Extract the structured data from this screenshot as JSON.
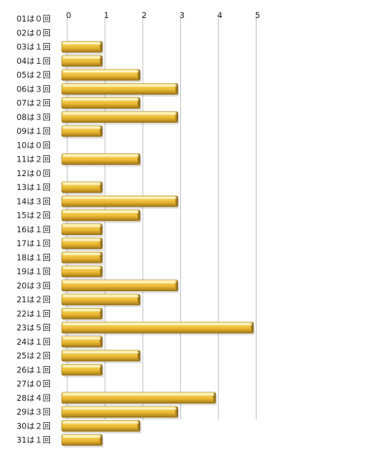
{
  "chart_data": {
    "type": "bar",
    "orientation": "horizontal",
    "title": "",
    "xlabel": "",
    "ylabel": "",
    "xlim": [
      0,
      5
    ],
    "x_ticks": [
      "0",
      "1",
      "2",
      "3",
      "4",
      "5"
    ],
    "grid": true,
    "legend": "none",
    "bar_color": "#F2C13D",
    "categories": [
      "01は０回",
      "02は０回",
      "03は１回",
      "04は１回",
      "05は２回",
      "06は３回",
      "07は２回",
      "08は３回",
      "09は１回",
      "10は０回",
      "11は２回",
      "12は０回",
      "13は１回",
      "14は３回",
      "15は２回",
      "16は１回",
      "17は１回",
      "18は１回",
      "19は１回",
      "20は３回",
      "21は２回",
      "22は１回",
      "23は５回",
      "24は１回",
      "25は２回",
      "26は１回",
      "27は０回",
      "28は４回",
      "29は３回",
      "30は２回",
      "31は１回"
    ],
    "values": [
      0,
      0,
      1,
      1,
      2,
      3,
      2,
      3,
      1,
      0,
      2,
      0,
      1,
      3,
      2,
      1,
      1,
      1,
      1,
      3,
      2,
      1,
      5,
      1,
      2,
      1,
      0,
      4,
      3,
      2,
      1
    ]
  }
}
